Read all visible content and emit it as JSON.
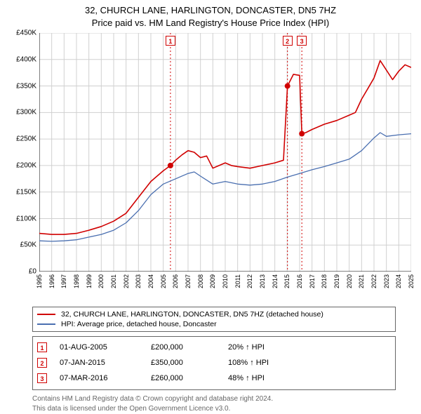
{
  "title_line1": "32, CHURCH LANE, HARLINGTON, DONCASTER, DN5 7HZ",
  "title_line2": "Price paid vs. HM Land Registry's House Price Index (HPI)",
  "chart": {
    "type": "line",
    "background_color": "#ffffff",
    "grid_color": "#d0d0d0",
    "axis_color": "#000000",
    "x_years": [
      1995,
      1996,
      1997,
      1998,
      1999,
      2000,
      2001,
      2002,
      2003,
      2004,
      2005,
      2006,
      2007,
      2008,
      2009,
      2010,
      2011,
      2012,
      2013,
      2014,
      2015,
      2016,
      2017,
      2018,
      2019,
      2020,
      2021,
      2022,
      2023,
      2024,
      2025
    ],
    "ylim": [
      0,
      450000
    ],
    "ytick_step": 50000,
    "ytick_labels": [
      "£0",
      "£50K",
      "£100K",
      "£150K",
      "£200K",
      "£250K",
      "£300K",
      "£350K",
      "£400K",
      "£450K"
    ],
    "series": [
      {
        "name": "property",
        "label": "32, CHURCH LANE, HARLINGTON, DONCASTER, DN5 7HZ (detached house)",
        "color": "#d00000",
        "line_width": 1.6,
        "points": [
          [
            1995.0,
            72000
          ],
          [
            1996.0,
            70000
          ],
          [
            1997.0,
            70000
          ],
          [
            1998.0,
            72000
          ],
          [
            1999.0,
            78000
          ],
          [
            2000.0,
            85000
          ],
          [
            2001.0,
            95000
          ],
          [
            2002.0,
            110000
          ],
          [
            2003.0,
            140000
          ],
          [
            2004.0,
            170000
          ],
          [
            2005.0,
            190000
          ],
          [
            2005.58,
            200000
          ],
          [
            2006.0,
            210000
          ],
          [
            2006.5,
            220000
          ],
          [
            2007.0,
            228000
          ],
          [
            2007.5,
            225000
          ],
          [
            2008.0,
            215000
          ],
          [
            2008.5,
            218000
          ],
          [
            2009.0,
            195000
          ],
          [
            2009.5,
            200000
          ],
          [
            2010.0,
            205000
          ],
          [
            2010.5,
            200000
          ],
          [
            2011.0,
            198000
          ],
          [
            2012.0,
            195000
          ],
          [
            2013.0,
            200000
          ],
          [
            2014.0,
            205000
          ],
          [
            2014.7,
            210000
          ],
          [
            2015.02,
            350000
          ],
          [
            2015.5,
            372000
          ],
          [
            2016.0,
            370000
          ],
          [
            2016.18,
            260000
          ],
          [
            2016.5,
            262000
          ],
          [
            2017.0,
            268000
          ],
          [
            2018.0,
            278000
          ],
          [
            2019.0,
            285000
          ],
          [
            2020.0,
            295000
          ],
          [
            2020.5,
            300000
          ],
          [
            2021.0,
            325000
          ],
          [
            2021.5,
            345000
          ],
          [
            2022.0,
            365000
          ],
          [
            2022.5,
            398000
          ],
          [
            2023.0,
            380000
          ],
          [
            2023.5,
            362000
          ],
          [
            2024.0,
            378000
          ],
          [
            2024.5,
            390000
          ],
          [
            2025.0,
            385000
          ]
        ]
      },
      {
        "name": "hpi",
        "label": "HPI: Average price, detached house, Doncaster",
        "color": "#4a6fb0",
        "line_width": 1.3,
        "points": [
          [
            1995.0,
            58000
          ],
          [
            1996.0,
            57000
          ],
          [
            1997.0,
            58000
          ],
          [
            1998.0,
            60000
          ],
          [
            1999.0,
            65000
          ],
          [
            2000.0,
            70000
          ],
          [
            2001.0,
            78000
          ],
          [
            2002.0,
            92000
          ],
          [
            2003.0,
            115000
          ],
          [
            2004.0,
            145000
          ],
          [
            2005.0,
            165000
          ],
          [
            2006.0,
            175000
          ],
          [
            2007.0,
            185000
          ],
          [
            2007.5,
            188000
          ],
          [
            2008.0,
            180000
          ],
          [
            2009.0,
            165000
          ],
          [
            2010.0,
            170000
          ],
          [
            2011.0,
            165000
          ],
          [
            2012.0,
            163000
          ],
          [
            2013.0,
            165000
          ],
          [
            2014.0,
            170000
          ],
          [
            2015.0,
            178000
          ],
          [
            2016.0,
            185000
          ],
          [
            2017.0,
            192000
          ],
          [
            2018.0,
            198000
          ],
          [
            2019.0,
            205000
          ],
          [
            2020.0,
            212000
          ],
          [
            2021.0,
            228000
          ],
          [
            2022.0,
            252000
          ],
          [
            2022.5,
            262000
          ],
          [
            2023.0,
            255000
          ],
          [
            2024.0,
            258000
          ],
          [
            2025.0,
            260000
          ]
        ]
      }
    ],
    "events": [
      {
        "num": "1",
        "year": 2005.58,
        "price": 200000
      },
      {
        "num": "2",
        "year": 2015.02,
        "price": 350000
      },
      {
        "num": "3",
        "year": 2016.18,
        "price": 260000
      }
    ],
    "event_line_color": "#d00000",
    "event_marker_fill": "#d00000"
  },
  "legend": {
    "rows": [
      {
        "color": "#d00000",
        "label": "32, CHURCH LANE, HARLINGTON, DONCASTER, DN5 7HZ (detached house)"
      },
      {
        "color": "#4a6fb0",
        "label": "HPI: Average price, detached house, Doncaster"
      }
    ]
  },
  "event_table": [
    {
      "num": "1",
      "date": "01-AUG-2005",
      "price": "£200,000",
      "pct": "20% ↑ HPI"
    },
    {
      "num": "2",
      "date": "07-JAN-2015",
      "price": "£350,000",
      "pct": "108% ↑ HPI"
    },
    {
      "num": "3",
      "date": "07-MAR-2016",
      "price": "£260,000",
      "pct": "48% ↑ HPI"
    }
  ],
  "footer_line1": "Contains HM Land Registry data © Crown copyright and database right 2024.",
  "footer_line2": "This data is licensed under the Open Government Licence v3.0."
}
